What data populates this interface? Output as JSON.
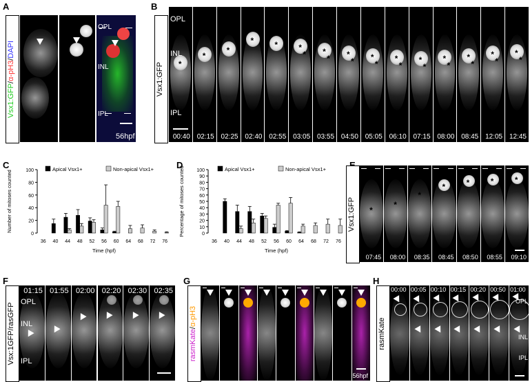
{
  "panels": {
    "A": {
      "letter": "A",
      "side_label": "Vsx1:GFP/α-pH3/DAPI",
      "side_parts": [
        "Vsx1:GFP",
        "/",
        "α-pH3",
        "/",
        "DAPI"
      ],
      "layers": [
        "OPL",
        "INL",
        "IPL"
      ],
      "stage": "56hpf"
    },
    "B": {
      "letter": "B",
      "side_label": "Vsx1:GFP",
      "layers": [
        "OPL",
        "INL",
        "IPL"
      ],
      "times": [
        "00:40",
        "02:15",
        "02:25",
        "02:40",
        "02:55",
        "03:05",
        "03:55",
        "04:50",
        "05:05",
        "06:10",
        "07:15",
        "08:00",
        "08:45",
        "12:05",
        "12:45"
      ]
    },
    "C": {
      "letter": "C"
    },
    "D": {
      "letter": "D"
    },
    "E": {
      "letter": "E",
      "side_label": "Vsx1:GFP",
      "times": [
        "07:45",
        "08:00",
        "08:35",
        "08:45",
        "08:50",
        "08:55",
        "09:10"
      ]
    },
    "F": {
      "letter": "F",
      "side_label": "Vsx:1GFP/rasGFP",
      "layers": [
        "OPL",
        "INL",
        "IPL"
      ],
      "times": [
        "01:15",
        "01:55",
        "02:00",
        "02:20",
        "02:30",
        "02:35"
      ]
    },
    "G": {
      "letter": "G",
      "side_label": "rasmKate/α-pH3",
      "side_parts": [
        "rasmKate",
        "/",
        "α-pH3"
      ],
      "stage": "56hpf"
    },
    "H": {
      "letter": "H",
      "side_label": "rasmKate",
      "layers": [
        "OPL",
        "INL",
        "IPL"
      ],
      "times": [
        "00:00",
        "00:05",
        "00:10",
        "00:15",
        "00:20",
        "00:50",
        "01:00"
      ]
    }
  },
  "colors": {
    "gfp": "#22cc22",
    "ph3": "#ff3333",
    "dapi": "#3333ff",
    "rasmkate": "#cc22cc",
    "ph3_orange": "#ff9900",
    "bar_apical": "#000000",
    "bar_nonapical": "#cccccc"
  },
  "chart_data": [
    {
      "type": "bar",
      "panel": "C",
      "ylabel": "Number of mitoses counted",
      "xlabel": "Time (hpf)",
      "categories": [
        "36",
        "40",
        "44",
        "48",
        "52",
        "56",
        "60",
        "64",
        "68",
        "72",
        "76"
      ],
      "ylim": [
        0,
        100
      ],
      "yticks": [
        0,
        20,
        40,
        60,
        80,
        100
      ],
      "legend_position": "top",
      "series": [
        {
          "name": "Apical Vsx1+",
          "color": "#000000",
          "values": [
            0,
            15,
            25,
            28,
            19,
            5,
            2,
            0,
            0,
            0,
            0
          ],
          "errors": [
            0,
            7,
            6,
            9,
            5,
            3,
            1,
            0,
            0,
            0,
            0
          ]
        },
        {
          "name": "Non-apical Vsx1+",
          "color": "#cccccc",
          "values": [
            0,
            0,
            5,
            11,
            17,
            44,
            42,
            7,
            8,
            3,
            1
          ],
          "errors": [
            0,
            0,
            2,
            4,
            4,
            32,
            8,
            5,
            5,
            2,
            1
          ]
        }
      ]
    },
    {
      "type": "bar",
      "panel": "D",
      "ylabel": "Percentage of mitoses counted",
      "xlabel": "Time (hpf)",
      "categories": [
        "36",
        "40",
        "44",
        "48",
        "52",
        "56",
        "60",
        "64",
        "68",
        "72",
        "76"
      ],
      "ylim": [
        0,
        100
      ],
      "yticks": [
        0,
        10,
        20,
        30,
        40,
        50,
        60,
        70,
        80,
        90,
        100
      ],
      "legend_position": "top",
      "series": [
        {
          "name": "Apical Vsx1+",
          "color": "#000000",
          "values": [
            0,
            50,
            34,
            34,
            27,
            9,
            3,
            1,
            0,
            0,
            0
          ],
          "errors": [
            0,
            4,
            10,
            8,
            4,
            5,
            1,
            1,
            0,
            0,
            0
          ]
        },
        {
          "name": "Non-apical Vsx1+",
          "color": "#cccccc",
          "values": [
            0,
            0,
            7,
            16,
            23,
            44,
            47,
            11,
            12,
            14,
            12
          ],
          "errors": [
            0,
            0,
            4,
            6,
            4,
            3,
            9,
            3,
            4,
            8,
            10
          ]
        }
      ]
    }
  ]
}
